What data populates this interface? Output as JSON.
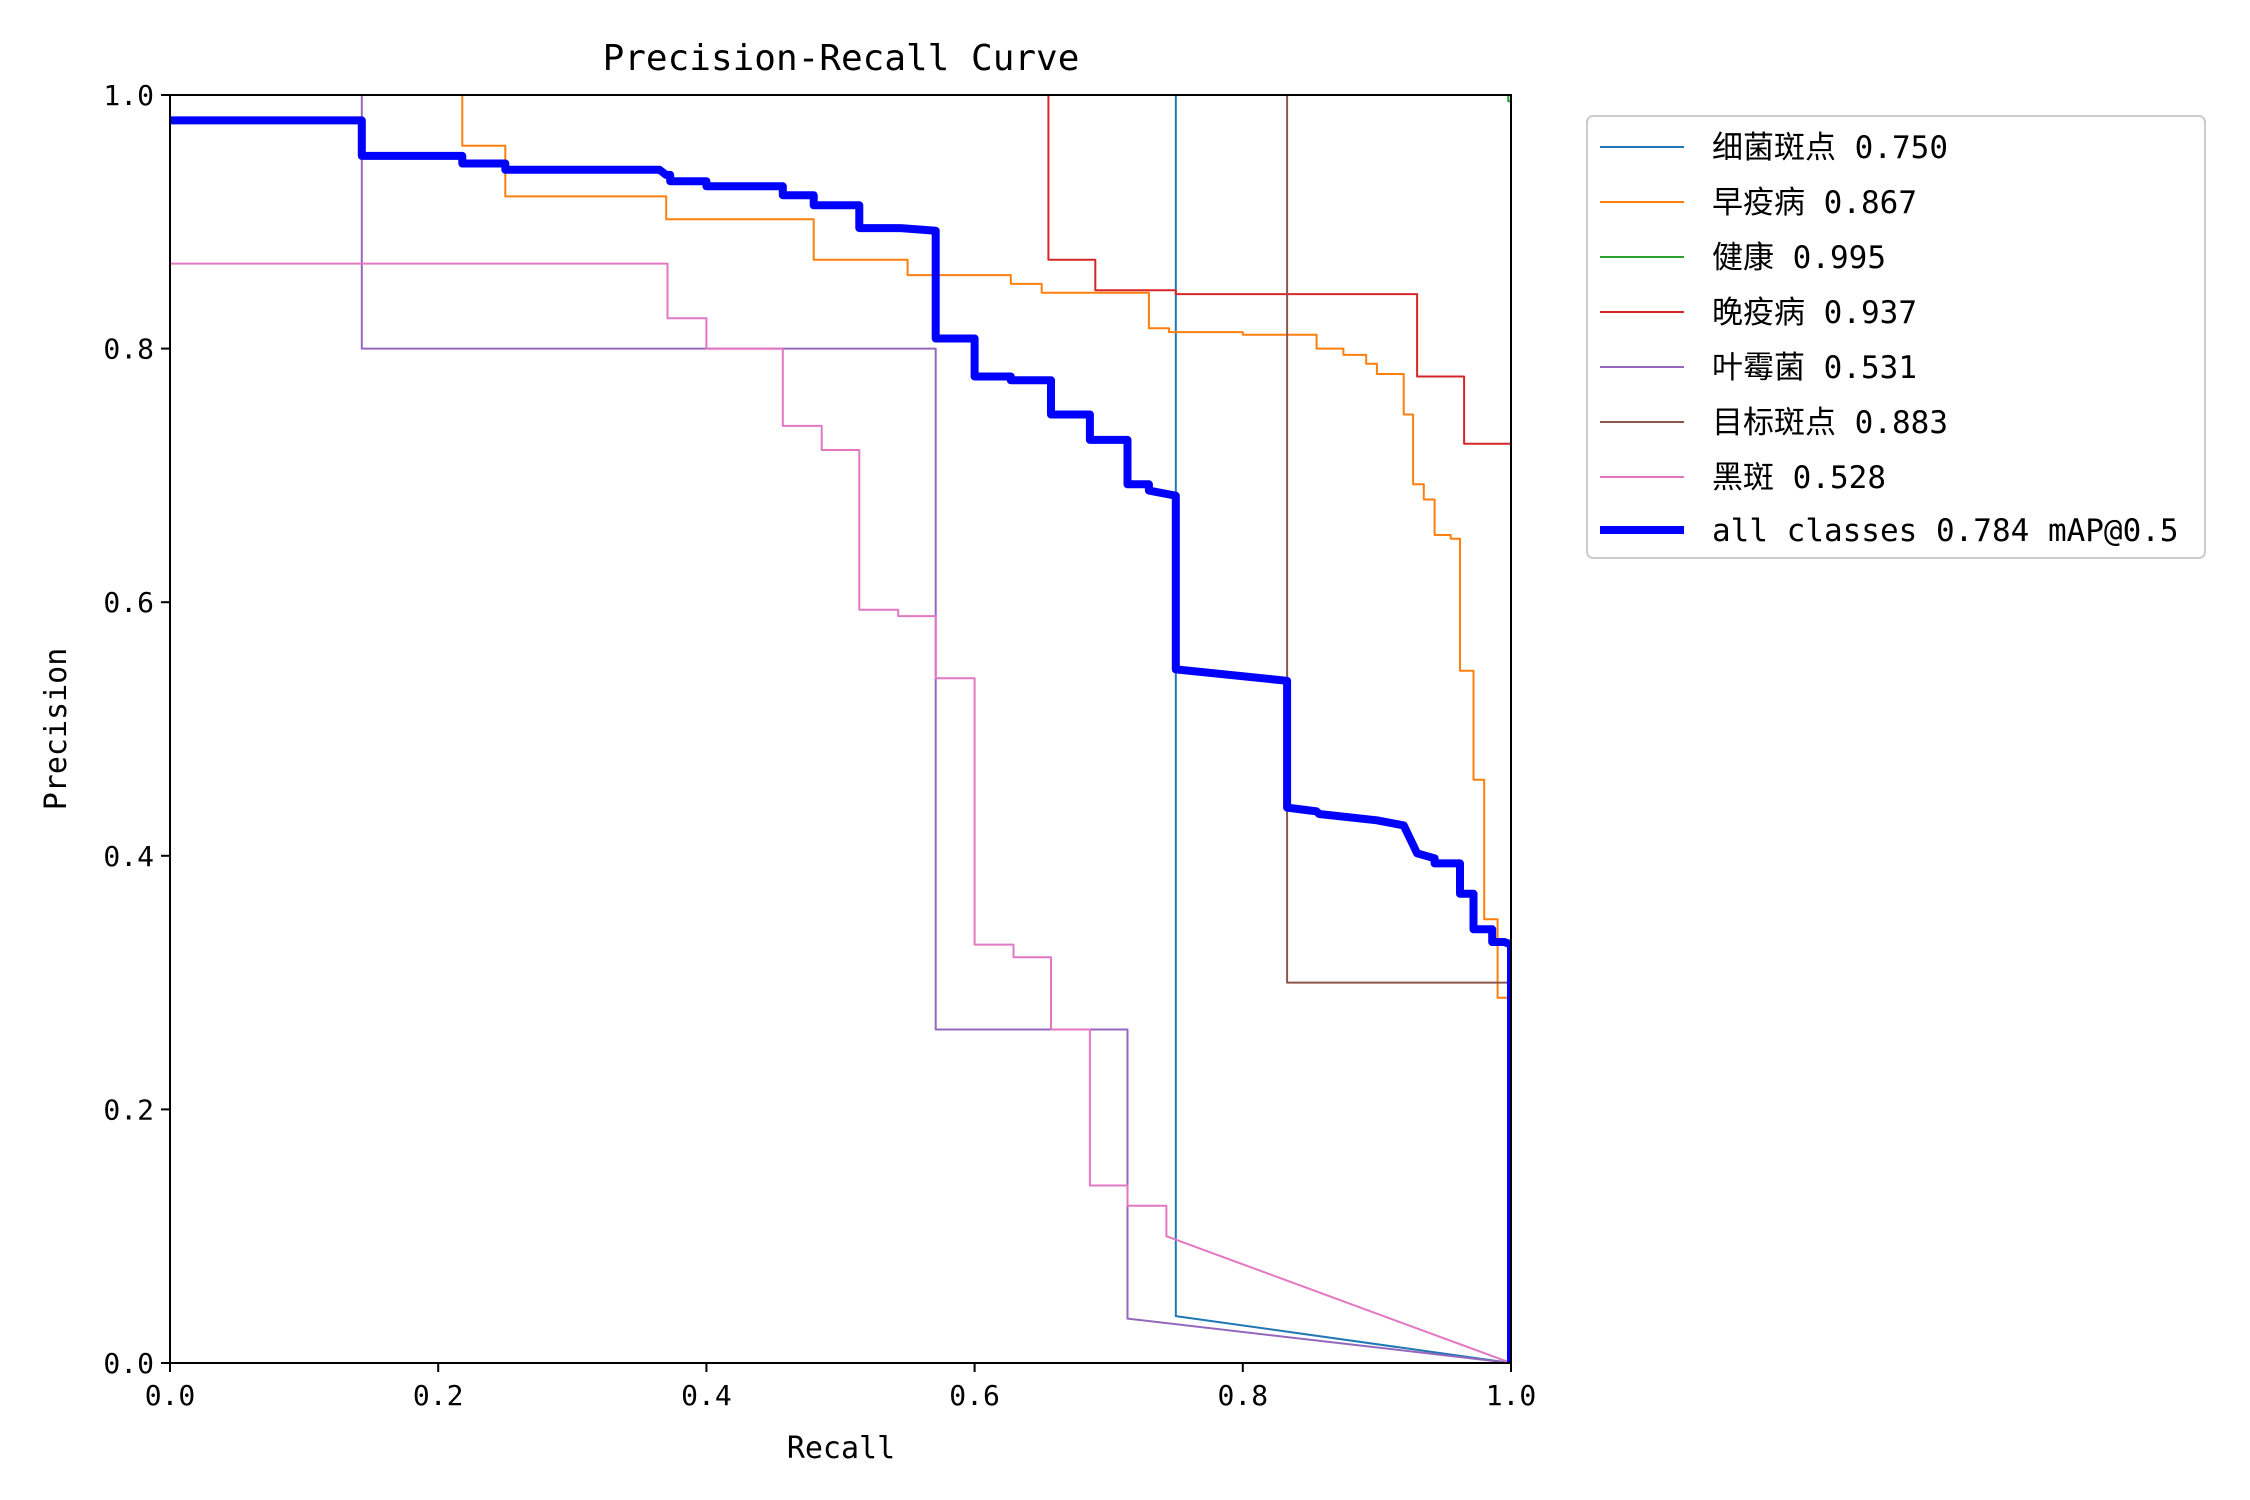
{
  "chart_data": {
    "type": "line",
    "title": "Precision-Recall Curve",
    "xlabel": "Recall",
    "ylabel": "Precision",
    "xlim": [
      0,
      1
    ],
    "ylim": [
      0,
      1
    ],
    "xticks": [
      "0.0",
      "0.2",
      "0.4",
      "0.6",
      "0.8",
      "1.0"
    ],
    "yticks": [
      "0.0",
      "0.2",
      "0.4",
      "0.6",
      "0.8",
      "1.0"
    ],
    "grid": false,
    "legend_position": "outside-top-right",
    "series": [
      {
        "name": "细菌斑点 0.750",
        "color": "#1f77b4",
        "width": 2,
        "points": [
          [
            0.75,
            1.0
          ],
          [
            0.75,
            0.037
          ],
          [
            1.0,
            0.0
          ]
        ]
      },
      {
        "name": "早疫病 0.867",
        "color": "#ff7f0e",
        "width": 2,
        "points": [
          [
            0.218,
            1.0
          ],
          [
            0.218,
            0.96
          ],
          [
            0.25,
            0.96
          ],
          [
            0.25,
            0.92
          ],
          [
            0.37,
            0.92
          ],
          [
            0.37,
            0.902
          ],
          [
            0.48,
            0.902
          ],
          [
            0.48,
            0.87
          ],
          [
            0.55,
            0.87
          ],
          [
            0.55,
            0.858
          ],
          [
            0.627,
            0.858
          ],
          [
            0.627,
            0.851
          ],
          [
            0.65,
            0.851
          ],
          [
            0.65,
            0.844
          ],
          [
            0.73,
            0.844
          ],
          [
            0.73,
            0.816
          ],
          [
            0.745,
            0.816
          ],
          [
            0.745,
            0.813
          ],
          [
            0.8,
            0.813
          ],
          [
            0.8,
            0.811
          ],
          [
            0.855,
            0.811
          ],
          [
            0.855,
            0.8
          ],
          [
            0.875,
            0.8
          ],
          [
            0.875,
            0.795
          ],
          [
            0.892,
            0.795
          ],
          [
            0.892,
            0.788
          ],
          [
            0.9,
            0.788
          ],
          [
            0.9,
            0.78
          ],
          [
            0.92,
            0.78
          ],
          [
            0.92,
            0.748
          ],
          [
            0.927,
            0.748
          ],
          [
            0.927,
            0.693
          ],
          [
            0.935,
            0.693
          ],
          [
            0.935,
            0.681
          ],
          [
            0.943,
            0.681
          ],
          [
            0.943,
            0.653
          ],
          [
            0.955,
            0.653
          ],
          [
            0.955,
            0.65
          ],
          [
            0.962,
            0.65
          ],
          [
            0.962,
            0.546
          ],
          [
            0.972,
            0.546
          ],
          [
            0.972,
            0.46
          ],
          [
            0.98,
            0.46
          ],
          [
            0.98,
            0.35
          ],
          [
            0.99,
            0.35
          ],
          [
            0.99,
            0.288
          ],
          [
            1.0,
            0.288
          ],
          [
            1.0,
            0.0
          ]
        ]
      },
      {
        "name": "健康 0.995",
        "color": "#2ca02c",
        "width": 2,
        "points": [
          [
            0.0,
            1.0
          ],
          [
            0.998,
            1.0
          ],
          [
            0.998,
            0.995
          ],
          [
            1.0,
            0.995
          ],
          [
            1.0,
            0.0
          ]
        ]
      },
      {
        "name": "晚疫病 0.937",
        "color": "#d62728",
        "width": 2,
        "points": [
          [
            0.655,
            1.0
          ],
          [
            0.655,
            0.87
          ],
          [
            0.69,
            0.87
          ],
          [
            0.69,
            0.846
          ],
          [
            0.75,
            0.846
          ],
          [
            0.75,
            0.843
          ],
          [
            0.93,
            0.843
          ],
          [
            0.93,
            0.778
          ],
          [
            0.965,
            0.778
          ],
          [
            0.965,
            0.725
          ],
          [
            1.0,
            0.725
          ],
          [
            1.0,
            0.0
          ]
        ]
      },
      {
        "name": "叶霉菌 0.531",
        "color": "#9467bd",
        "width": 2,
        "points": [
          [
            0.143,
            1.0
          ],
          [
            0.143,
            0.8
          ],
          [
            0.571,
            0.8
          ],
          [
            0.571,
            0.263
          ],
          [
            0.714,
            0.263
          ],
          [
            0.714,
            0.035
          ],
          [
            1.0,
            0.0
          ]
        ]
      },
      {
        "name": "目标斑点 0.883",
        "color": "#8c564b",
        "width": 2,
        "points": [
          [
            0.833,
            1.0
          ],
          [
            0.833,
            0.3
          ],
          [
            1.0,
            0.3
          ],
          [
            1.0,
            0.0
          ]
        ]
      },
      {
        "name": "黑斑 0.528",
        "color": "#e377c2",
        "width": 2,
        "points": [
          [
            0.0,
            0.867
          ],
          [
            0.371,
            0.867
          ],
          [
            0.371,
            0.824
          ],
          [
            0.4,
            0.824
          ],
          [
            0.4,
            0.8
          ],
          [
            0.457,
            0.8
          ],
          [
            0.457,
            0.739
          ],
          [
            0.486,
            0.739
          ],
          [
            0.486,
            0.72
          ],
          [
            0.514,
            0.72
          ],
          [
            0.514,
            0.594
          ],
          [
            0.543,
            0.594
          ],
          [
            0.543,
            0.589
          ],
          [
            0.571,
            0.589
          ],
          [
            0.571,
            0.54
          ],
          [
            0.6,
            0.54
          ],
          [
            0.6,
            0.33
          ],
          [
            0.629,
            0.33
          ],
          [
            0.629,
            0.32
          ],
          [
            0.657,
            0.32
          ],
          [
            0.657,
            0.263
          ],
          [
            0.686,
            0.263
          ],
          [
            0.686,
            0.14
          ],
          [
            0.714,
            0.14
          ],
          [
            0.714,
            0.124
          ],
          [
            0.743,
            0.124
          ],
          [
            0.743,
            0.1
          ],
          [
            1.0,
            0.0
          ]
        ]
      },
      {
        "name": "all classes 0.784 mAP@0.5",
        "color": "#0000ff",
        "width": 8,
        "points": [
          [
            0.0,
            0.98
          ],
          [
            0.143,
            0.98
          ],
          [
            0.143,
            0.952
          ],
          [
            0.218,
            0.952
          ],
          [
            0.218,
            0.946
          ],
          [
            0.25,
            0.946
          ],
          [
            0.25,
            0.941
          ],
          [
            0.365,
            0.941
          ],
          [
            0.37,
            0.937
          ],
          [
            0.373,
            0.937
          ],
          [
            0.373,
            0.932
          ],
          [
            0.4,
            0.932
          ],
          [
            0.4,
            0.928
          ],
          [
            0.457,
            0.928
          ],
          [
            0.457,
            0.921
          ],
          [
            0.48,
            0.921
          ],
          [
            0.48,
            0.913
          ],
          [
            0.514,
            0.913
          ],
          [
            0.514,
            0.895
          ],
          [
            0.545,
            0.895
          ],
          [
            0.571,
            0.893
          ],
          [
            0.571,
            0.808
          ],
          [
            0.6,
            0.808
          ],
          [
            0.6,
            0.778
          ],
          [
            0.627,
            0.778
          ],
          [
            0.627,
            0.775
          ],
          [
            0.657,
            0.775
          ],
          [
            0.657,
            0.748
          ],
          [
            0.686,
            0.748
          ],
          [
            0.686,
            0.728
          ],
          [
            0.714,
            0.728
          ],
          [
            0.714,
            0.693
          ],
          [
            0.73,
            0.693
          ],
          [
            0.73,
            0.688
          ],
          [
            0.75,
            0.684
          ],
          [
            0.75,
            0.547
          ],
          [
            0.833,
            0.538
          ],
          [
            0.833,
            0.438
          ],
          [
            0.855,
            0.435
          ],
          [
            0.857,
            0.433
          ],
          [
            0.9,
            0.428
          ],
          [
            0.92,
            0.424
          ],
          [
            0.925,
            0.413
          ],
          [
            0.93,
            0.402
          ],
          [
            0.943,
            0.398
          ],
          [
            0.943,
            0.394
          ],
          [
            0.962,
            0.394
          ],
          [
            0.962,
            0.37
          ],
          [
            0.972,
            0.37
          ],
          [
            0.972,
            0.342
          ],
          [
            0.986,
            0.342
          ],
          [
            0.986,
            0.332
          ],
          [
            0.995,
            0.332
          ],
          [
            1.0,
            0.33
          ],
          [
            1.0,
            0.0
          ]
        ]
      }
    ]
  }
}
